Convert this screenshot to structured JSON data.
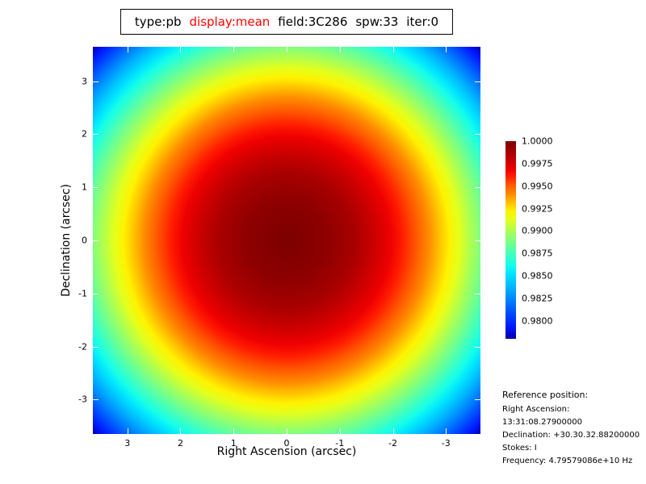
{
  "title_bar": {
    "segments": [
      {
        "text": "type:pb",
        "color": "#000000"
      },
      {
        "text": "display:mean",
        "color": "#ff0000"
      },
      {
        "text": "field:3C286",
        "color": "#000000"
      },
      {
        "text": "spw:33",
        "color": "#000000"
      },
      {
        "text": "iter:0",
        "color": "#000000"
      }
    ]
  },
  "chart_data": {
    "type": "heatmap",
    "title": "type:pb display:mean field:3C286 spw:33 iter:0",
    "xlabel": "Right Ascension (arcsec)",
    "ylabel": "Declination (arcsec)",
    "x_tick_values": [
      3,
      2,
      1,
      0,
      -1,
      -2,
      -3
    ],
    "x_tick_labels": [
      "3",
      "2",
      "1",
      "0",
      "-1",
      "-2",
      "-3"
    ],
    "y_tick_values": [
      3,
      2,
      1,
      0,
      -1,
      -2,
      -3
    ],
    "y_tick_labels": [
      "3",
      "2",
      "1",
      "0",
      "-1",
      "-2",
      "-3"
    ],
    "axis_half_range_arcsec": 3.65,
    "colormap": "jet",
    "pattern": "circularly symmetric primary beam: peak value 1.0000 (dark red) at center (0,0), decreasing radially through red, orange, yellow, green, cyan, blue to ~0.978 (dark blue) at the image corners",
    "colorbar": {
      "tick_labels": [
        "1.0000",
        "0.9975",
        "0.9950",
        "0.9925",
        "0.9900",
        "0.9875",
        "0.9850",
        "0.9825",
        "0.9800"
      ],
      "value_max": 1.0,
      "value_min": 0.978
    }
  },
  "reference_block": {
    "heading": "Reference position:",
    "lines": [
      "Right Ascension: 13:31:08.27900000",
      "Declination: +30.30.32.88200000",
      "Stokes: I",
      "Frequency: 4.79579086e+10 Hz"
    ]
  }
}
